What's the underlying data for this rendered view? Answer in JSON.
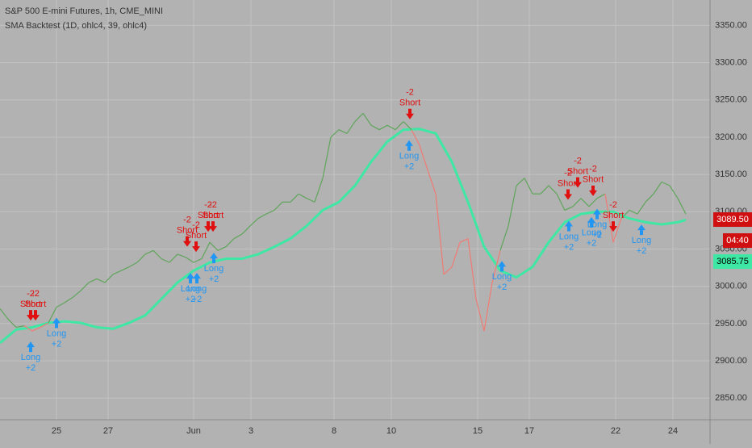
{
  "chart_data": {
    "type": "line",
    "title": "S&P 500 E-mini Futures, 1h, CME_MINI",
    "subtitle": "SMA Backtest (1D, ohlc4, 39, ohlc4)",
    "background": "#b2b2b2",
    "grid": true,
    "xlim": [
      0,
      88
    ],
    "xticks": [
      {
        "value": 7,
        "label": "25"
      },
      {
        "value": 13.4,
        "label": "27"
      },
      {
        "value": 24,
        "label": "Jun"
      },
      {
        "value": 31.1,
        "label": "3"
      },
      {
        "value": 41.4,
        "label": "8"
      },
      {
        "value": 48.5,
        "label": "10"
      },
      {
        "value": 59.2,
        "label": "15"
      },
      {
        "value": 65.6,
        "label": "17"
      },
      {
        "value": 76.3,
        "label": "22"
      },
      {
        "value": 83.4,
        "label": "24"
      }
    ],
    "ylim": [
      2821,
      3384
    ],
    "yticks": [
      {
        "value": 2850,
        "label": "2850.00"
      },
      {
        "value": 2900,
        "label": "2900.00"
      },
      {
        "value": 2950,
        "label": "2950.00"
      },
      {
        "value": 3000,
        "label": "3000.00"
      },
      {
        "value": 3050,
        "label": "3050.00"
      },
      {
        "value": 3100,
        "label": "3100.00"
      },
      {
        "value": 3150,
        "label": "3150.00"
      },
      {
        "value": 3200,
        "label": "3200.00"
      },
      {
        "value": 3250,
        "label": "3250.00"
      },
      {
        "value": 3300,
        "label": "3300.00"
      },
      {
        "value": 3350,
        "label": "3350.00"
      }
    ],
    "series": [
      {
        "name": "Price",
        "color_above": "#5fa55a",
        "color_below": "#f07b74",
        "x": [
          0,
          1,
          2,
          3,
          4,
          5,
          6,
          7,
          8,
          9,
          10,
          11,
          12,
          13,
          14,
          15,
          16,
          17,
          18,
          19,
          20,
          21,
          22,
          23,
          24,
          25,
          26,
          27,
          28,
          29,
          30,
          31,
          32,
          33,
          34,
          35,
          36,
          37,
          38,
          39,
          40,
          41,
          42,
          43,
          44,
          45,
          46,
          47,
          48,
          49,
          50,
          51,
          52,
          53,
          54,
          55,
          56,
          57,
          58,
          59,
          60,
          61,
          62,
          63,
          64,
          65,
          66,
          67,
          68,
          69,
          70,
          71,
          72,
          73,
          74,
          75,
          76,
          77,
          78,
          79,
          80,
          81,
          82,
          83,
          84,
          85
        ],
        "values": [
          2970,
          2956,
          2945,
          2947,
          2940,
          2945,
          2951,
          2972,
          2978,
          2985,
          2994,
          3005,
          3010,
          3005,
          3016,
          3021,
          3026,
          3032,
          3043,
          3048,
          3037,
          3032,
          3043,
          3039,
          3032,
          3037,
          3059,
          3048,
          3053,
          3064,
          3070,
          3081,
          3091,
          3097,
          3102,
          3113,
          3113,
          3124,
          3118,
          3113,
          3145,
          3200,
          3210,
          3205,
          3221,
          3232,
          3216,
          3210,
          3216,
          3210,
          3221,
          3210,
          3189,
          3156,
          3124,
          3016,
          3026,
          3059,
          3064,
          2983,
          2940,
          3005,
          3048,
          3081,
          3135,
          3145,
          3124,
          3124,
          3135,
          3124,
          3102,
          3107,
          3118,
          3107,
          3118,
          3124,
          3059,
          3091,
          3102,
          3097,
          3113,
          3124,
          3140,
          3135,
          3118,
          3097
        ]
      },
      {
        "name": "SMA",
        "color": "#3ee8a4",
        "x": [
          0,
          2,
          4,
          6,
          8,
          10,
          12,
          14,
          16,
          18,
          20,
          22,
          24,
          26,
          28,
          30,
          32,
          34,
          36,
          38,
          40,
          42,
          44,
          46,
          48,
          50,
          52,
          54,
          56,
          58,
          60,
          62,
          64,
          66,
          68,
          70,
          72,
          74,
          76,
          78,
          80,
          82,
          84,
          85
        ],
        "values": [
          2924,
          2942,
          2945,
          2951,
          2953,
          2951,
          2945,
          2943,
          2951,
          2961,
          2983,
          3005,
          3021,
          3032,
          3037,
          3037,
          3043,
          3053,
          3064,
          3081,
          3102,
          3113,
          3135,
          3167,
          3194,
          3210,
          3211,
          3205,
          3167,
          3113,
          3053,
          3021,
          3012,
          3026,
          3059,
          3086,
          3097,
          3100,
          3100,
          3091,
          3086,
          3083,
          3086,
          3089
        ]
      }
    ],
    "trades": [
      {
        "side": "Short",
        "qty": "-2",
        "x": 3.8
      },
      {
        "side": "Short",
        "qty": "-2",
        "x": 4.4
      },
      {
        "side": "Long",
        "qty": "+2",
        "x": 3.8
      },
      {
        "side": "Long",
        "qty": "+2",
        "x": 7
      },
      {
        "side": "Short",
        "qty": "-2",
        "x": 23.2
      },
      {
        "side": "Short",
        "qty": "-2",
        "x": 24.3
      },
      {
        "side": "Short",
        "qty": "-2",
        "x": 25.8
      },
      {
        "side": "Short",
        "qty": "-2",
        "x": 26.4
      },
      {
        "side": "Long",
        "qty": "+2",
        "x": 23.6
      },
      {
        "side": "Long",
        "qty": "+2",
        "x": 24.4
      },
      {
        "side": "Long",
        "qty": "+2",
        "x": 26.5
      },
      {
        "side": "Short",
        "qty": "-2",
        "x": 50.8
      },
      {
        "side": "Long",
        "qty": "+2",
        "x": 50.7
      },
      {
        "side": "Long",
        "qty": "+2",
        "x": 62.2
      },
      {
        "side": "Short",
        "qty": "-2",
        "x": 70.4
      },
      {
        "side": "Short",
        "qty": "-2",
        "x": 71.6
      },
      {
        "side": "Short",
        "qty": "-2",
        "x": 73.5
      },
      {
        "side": "Short",
        "qty": "-2",
        "x": 76
      },
      {
        "side": "Long",
        "qty": "+2",
        "x": 70.5
      },
      {
        "side": "Long",
        "qty": "+2",
        "x": 73.3
      },
      {
        "side": "Long",
        "qty": "+2",
        "x": 74
      },
      {
        "side": "Long",
        "qty": "+2",
        "x": 79.5
      }
    ],
    "trade_colors": {
      "Short": "#e01010",
      "Long": "#2196f3"
    },
    "last_price": {
      "value": 3089.5,
      "label": "3089.50",
      "color": "#d01010"
    },
    "countdown": "04:40",
    "sma_last": {
      "value": 3085.75,
      "label": "3085.75",
      "color": "#3ee8a4"
    }
  }
}
